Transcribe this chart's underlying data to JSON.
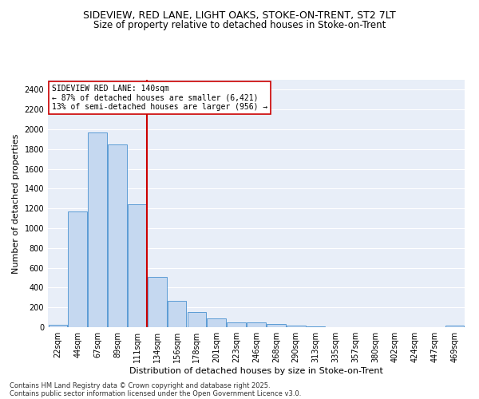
{
  "title1": "SIDEVIEW, RED LANE, LIGHT OAKS, STOKE-ON-TRENT, ST2 7LT",
  "title2": "Size of property relative to detached houses in Stoke-on-Trent",
  "xlabel": "Distribution of detached houses by size in Stoke-on-Trent",
  "ylabel": "Number of detached properties",
  "categories": [
    "22sqm",
    "44sqm",
    "67sqm",
    "89sqm",
    "111sqm",
    "134sqm",
    "156sqm",
    "178sqm",
    "201sqm",
    "223sqm",
    "246sqm",
    "268sqm",
    "290sqm",
    "313sqm",
    "335sqm",
    "357sqm",
    "380sqm",
    "402sqm",
    "424sqm",
    "447sqm",
    "469sqm"
  ],
  "values": [
    22,
    1170,
    1970,
    1850,
    1240,
    510,
    270,
    155,
    90,
    50,
    45,
    35,
    20,
    5,
    0,
    0,
    0,
    0,
    0,
    0,
    20
  ],
  "bar_color": "#c5d8f0",
  "bar_edge_color": "#5b9bd5",
  "vline_color": "#cc0000",
  "vline_pos": 4.5,
  "annotation_text": "SIDEVIEW RED LANE: 140sqm\n← 87% of detached houses are smaller (6,421)\n13% of semi-detached houses are larger (956) →",
  "annotation_box_color": "#cc0000",
  "ylim": [
    0,
    2500
  ],
  "yticks": [
    0,
    200,
    400,
    600,
    800,
    1000,
    1200,
    1400,
    1600,
    1800,
    2000,
    2200,
    2400
  ],
  "background_color": "#e8eef8",
  "grid_color": "#ffffff",
  "footer1": "Contains HM Land Registry data © Crown copyright and database right 2025.",
  "footer2": "Contains public sector information licensed under the Open Government Licence v3.0.",
  "title_fontsize": 9,
  "title2_fontsize": 8.5,
  "axis_label_fontsize": 8,
  "tick_fontsize": 7,
  "annotation_fontsize": 7,
  "footer_fontsize": 6
}
